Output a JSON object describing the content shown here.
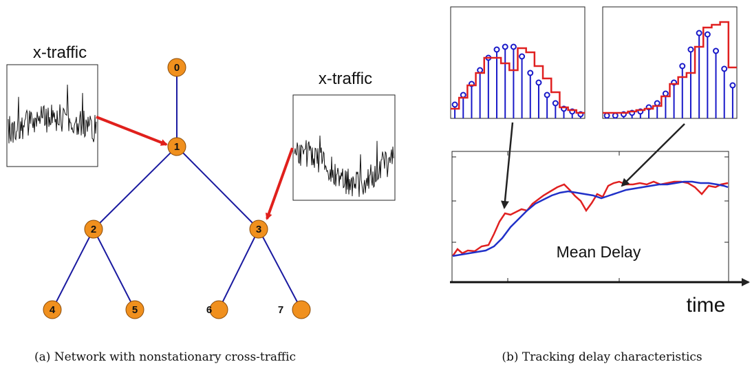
{
  "left_panel": {
    "tree": {
      "nodes": [
        {
          "id": "0",
          "label": "0"
        },
        {
          "id": "1",
          "label": "1"
        },
        {
          "id": "2",
          "label": "2"
        },
        {
          "id": "3",
          "label": "3"
        },
        {
          "id": "4",
          "label": "4"
        },
        {
          "id": "5",
          "label": "5"
        },
        {
          "id": "6",
          "label": "6"
        },
        {
          "id": "7",
          "label": "7"
        }
      ],
      "edges": [
        [
          "0",
          "1"
        ],
        [
          "1",
          "2"
        ],
        [
          "1",
          "3"
        ],
        [
          "2",
          "4"
        ],
        [
          "2",
          "5"
        ],
        [
          "3",
          "6"
        ],
        [
          "3",
          "7"
        ]
      ]
    },
    "xtraffic_left_label": "x-traffic",
    "xtraffic_right_label": "x-traffic",
    "caption": "(a) Network with nonstationary cross-traffic"
  },
  "right_panel": {
    "mean_delay_label": "Mean Delay",
    "time_label": "time",
    "caption": "(b) Tracking delay characteristics"
  },
  "colors": {
    "node_fill": "#f0901e",
    "edge": "#1a1aa0",
    "arrow_red": "#e0201c",
    "stem_blue": "#1818c8",
    "line_red": "#e02020",
    "line_blue": "#2030c8"
  }
}
